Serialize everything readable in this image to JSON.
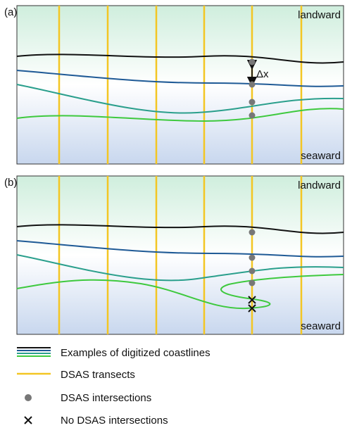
{
  "panels": [
    {
      "label": "(a)",
      "top_label": "landward",
      "bottom_label": "seaward",
      "annotation": "Δx"
    },
    {
      "label": "(b)",
      "top_label": "landward",
      "bottom_label": "seaward"
    }
  ],
  "legend": [
    {
      "label": "Examples of digitized coastlines"
    },
    {
      "label": "DSAS transects"
    },
    {
      "label": "DSAS intersections"
    },
    {
      "label": "No DSAS intersections"
    }
  ]
}
